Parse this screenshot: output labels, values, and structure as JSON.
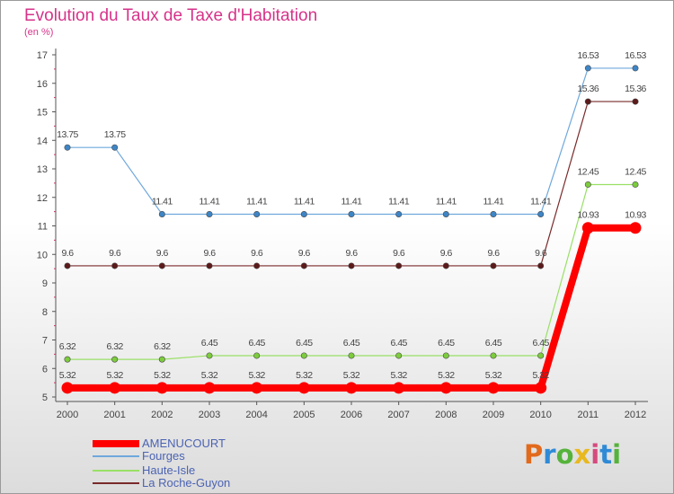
{
  "title": "Evolution du Taux de Taxe d'Habitation",
  "subtitle": "(en %)",
  "logo": {
    "text": "Proxiti",
    "colors": [
      "#e26a1c",
      "#2f8ad6",
      "#55b33b",
      "#e8b81f",
      "#d64a7e",
      "#2f8ad6",
      "#55b33b"
    ]
  },
  "colors": {
    "title": "#d6338a",
    "axis": "#555555",
    "legend_text": "#4b63b2"
  },
  "chart_data": {
    "type": "line",
    "title": "Evolution du Taux de Taxe d'Habitation",
    "ylabel": "(en %)",
    "xlabel": "",
    "x": [
      "2000",
      "2001",
      "2002",
      "2003",
      "2004",
      "2005",
      "2006",
      "2007",
      "2008",
      "2009",
      "2010",
      "2011",
      "2012"
    ],
    "ylim": [
      5,
      17
    ],
    "yticks": [
      "5",
      "6",
      "7",
      "8",
      "9",
      "10",
      "11",
      "12",
      "13",
      "14",
      "15",
      "16",
      "17"
    ],
    "grid": false,
    "legend_position": "bottom-left",
    "series": [
      {
        "name": "AMENUCOURT",
        "color": "#ff0000",
        "width": 8,
        "marker": 6.5,
        "values": [
          5.32,
          5.32,
          5.32,
          5.32,
          5.32,
          5.32,
          5.32,
          5.32,
          5.32,
          5.32,
          5.32,
          10.93,
          10.93
        ],
        "labels": [
          "5.32",
          "5.32",
          "5.32",
          "5.32",
          "5.32",
          "5.32",
          "5.32",
          "5.32",
          "5.32",
          "5.32",
          "5.32",
          "10.93",
          "10.93"
        ]
      },
      {
        "name": "Fourges",
        "color": "#6fa8dc",
        "marker_color": "#3d85c6",
        "width": 1.2,
        "marker": 3.2,
        "values": [
          13.75,
          13.75,
          11.41,
          11.41,
          11.41,
          11.41,
          11.41,
          11.41,
          11.41,
          11.41,
          11.41,
          16.53,
          16.53
        ],
        "labels": [
          "13.75",
          "13.75",
          "11.41",
          "11.41",
          "11.41",
          "11.41",
          "11.41",
          "11.41",
          "11.41",
          "11.41",
          "11.41",
          "16.53",
          "16.53"
        ]
      },
      {
        "name": "Haute-Isle",
        "color": "#99e066",
        "marker_color": "#7ccc3c",
        "width": 1.2,
        "marker": 3.2,
        "values": [
          6.32,
          6.32,
          6.32,
          6.45,
          6.45,
          6.45,
          6.45,
          6.45,
          6.45,
          6.45,
          6.45,
          12.45,
          12.45
        ],
        "labels": [
          "6.32",
          "6.32",
          "6.32",
          "6.45",
          "6.45",
          "6.45",
          "6.45",
          "6.45",
          "6.45",
          "6.45",
          "6.45",
          "12.45",
          "12.45"
        ]
      },
      {
        "name": "La Roche-Guyon",
        "color": "#7a2a2a",
        "marker_color": "#5c1a1a",
        "width": 1.2,
        "marker": 3.2,
        "values": [
          9.6,
          9.6,
          9.6,
          9.6,
          9.6,
          9.6,
          9.6,
          9.6,
          9.6,
          9.6,
          9.6,
          15.36,
          15.36
        ],
        "labels": [
          "9.6",
          "9.6",
          "9.6",
          "9.6",
          "9.6",
          "9.6",
          "9.6",
          "9.6",
          "9.6",
          "9.6",
          "9.6",
          "15.36",
          "15.36"
        ]
      }
    ]
  }
}
